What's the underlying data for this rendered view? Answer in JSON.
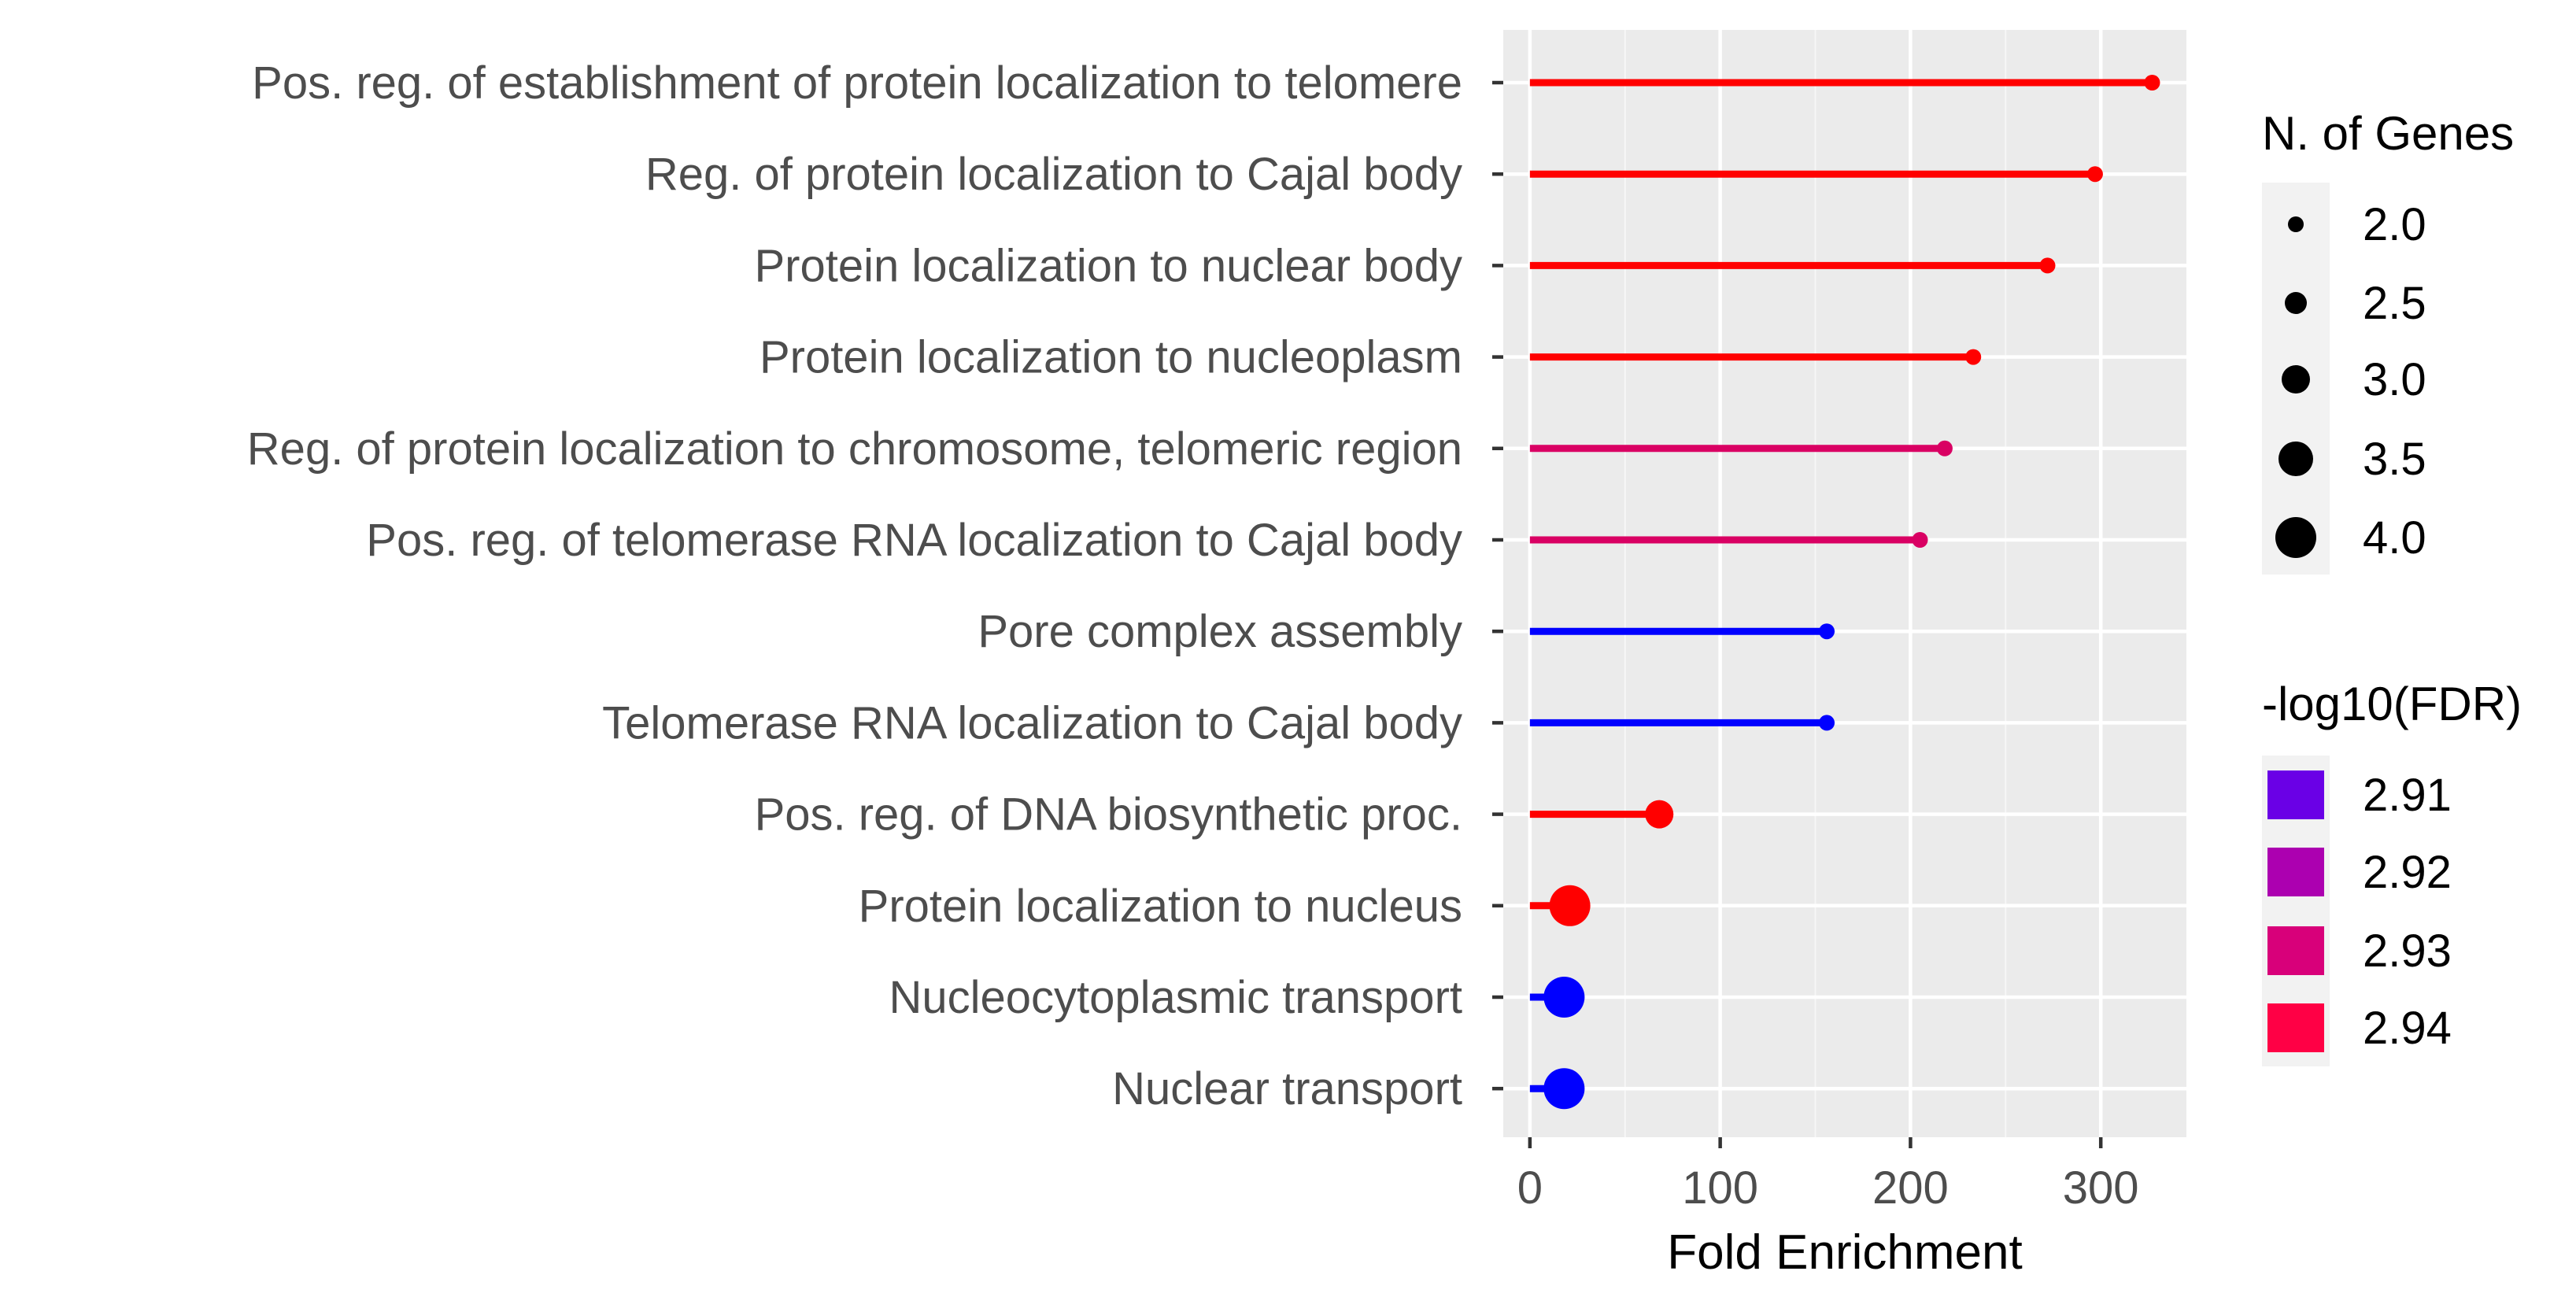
{
  "chart_data": {
    "type": "lollipop",
    "xlabel": "Fold Enrichment",
    "ylabel": "",
    "xlim": [
      -14,
      345
    ],
    "xticks": [
      0,
      100,
      200,
      300
    ],
    "x_minor_ticks": [
      50,
      150,
      250
    ],
    "grid": true,
    "categories": [
      "Pos. reg. of establishment of protein localization to telomere",
      "Reg. of protein localization to Cajal body",
      "Protein localization to nuclear body",
      "Protein localization to nucleoplasm",
      "Reg. of protein localization to chromosome, telomeric region",
      "Pos. reg. of telomerase RNA localization to Cajal body",
      "Pore complex assembly",
      "Telomerase RNA localization to Cajal body",
      "Pos. reg. of DNA biosynthetic proc.",
      "Protein localization to nucleus",
      "Nucleocytoplasmic transport",
      "Nuclear transport"
    ],
    "fold_enrichment": [
      327,
      297,
      272,
      233,
      218,
      205,
      156,
      156,
      68,
      21,
      18,
      18
    ],
    "n_genes": [
      2,
      2,
      2,
      2,
      2,
      2,
      2,
      2,
      3,
      4,
      4,
      4
    ],
    "neg_log10_fdr": [
      2.94,
      2.94,
      2.94,
      2.94,
      2.93,
      2.93,
      2.91,
      2.91,
      2.94,
      2.94,
      2.91,
      2.91
    ],
    "colors": [
      "#ff0000",
      "#ff0000",
      "#ff0000",
      "#ff0000",
      "#d90063",
      "#d90063",
      "#0000ff",
      "#0000ff",
      "#ff0000",
      "#ff0000",
      "#0000ff",
      "#0000ff"
    ],
    "legend_size": {
      "title": "N. of Genes",
      "labels": [
        "2.0",
        "2.5",
        "3.0",
        "3.5",
        "4.0"
      ],
      "values": [
        2.0,
        2.5,
        3.0,
        3.5,
        4.0
      ]
    },
    "legend_color": {
      "title": "-log10(FDR)",
      "labels": [
        "2.91",
        "2.92",
        "2.93",
        "2.94"
      ],
      "colors": [
        "#6a00e6",
        "#ac00b0",
        "#d8007a",
        "#ff0045"
      ]
    },
    "legend_placement": "right"
  }
}
